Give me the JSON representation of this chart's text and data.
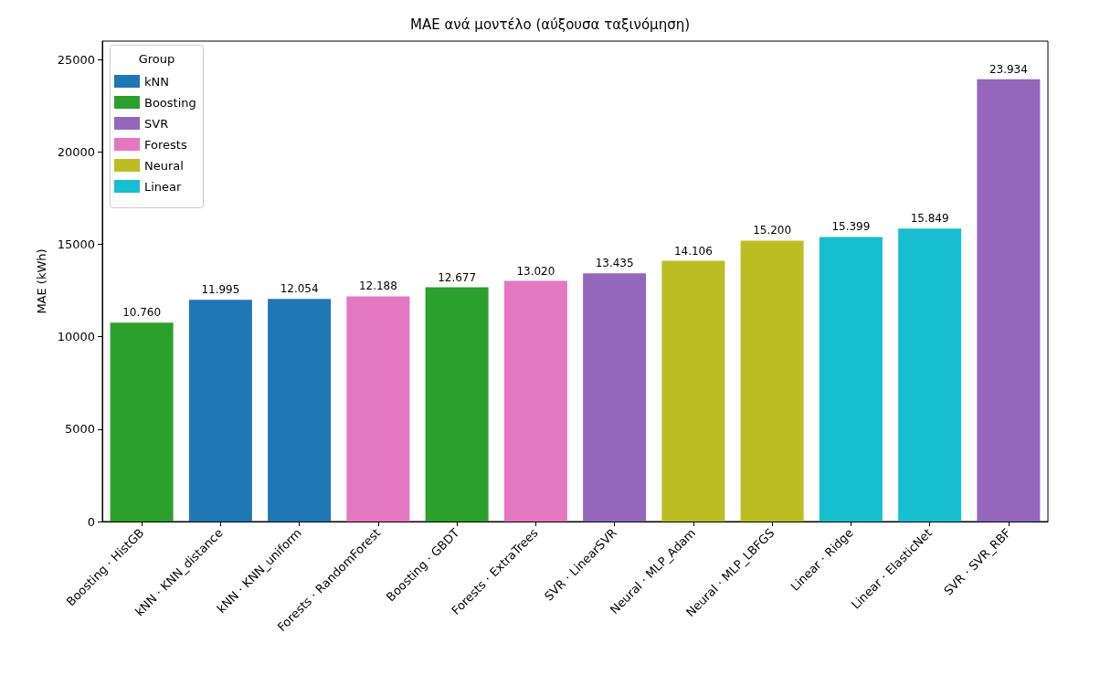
{
  "chart_data": {
    "type": "bar",
    "title": "MAE ανά μοντέλο (αύξουσα ταξινόμηση)",
    "ylabel": "MAE (kWh)",
    "legend_title": "Group",
    "legend": "top left",
    "grid": false,
    "categories": [
      "Boosting · HistGB",
      "kNN · KNN_distance",
      "kNN · KNN_uniform",
      "Forests · RandomForest",
      "Boosting · GBDT",
      "Forests · ExtraTrees",
      "SVR · LinearSVR",
      "Neural · MLP_Adam",
      "Neural · MLP_LBFGS",
      "Linear · Ridge",
      "Linear · ElasticNet",
      "SVR · SVR_RBF"
    ],
    "ylim": [
      0,
      26000
    ],
    "yticks": [
      0,
      5000,
      10000,
      15000,
      20000,
      25000
    ],
    "series": [
      {
        "name": "kNN",
        "color": "#1f77b4",
        "values": [
          null,
          11995,
          12054,
          null,
          null,
          null,
          null,
          null,
          null,
          null,
          null,
          null
        ],
        "value_labels": [
          null,
          "11.995",
          "12.054",
          null,
          null,
          null,
          null,
          null,
          null,
          null,
          null,
          null
        ]
      },
      {
        "name": "Boosting",
        "color": "#2ca02c",
        "values": [
          10760,
          null,
          null,
          null,
          12677,
          null,
          null,
          null,
          null,
          null,
          null,
          null
        ],
        "value_labels": [
          "10.760",
          null,
          null,
          null,
          "12.677",
          null,
          null,
          null,
          null,
          null,
          null,
          null
        ]
      },
      {
        "name": "SVR",
        "color": "#9467bd",
        "values": [
          null,
          null,
          null,
          null,
          null,
          null,
          13435,
          null,
          null,
          null,
          null,
          23934
        ],
        "value_labels": [
          null,
          null,
          null,
          null,
          null,
          null,
          "13.435",
          null,
          null,
          null,
          null,
          "23.934"
        ]
      },
      {
        "name": "Forests",
        "color": "#e377c2",
        "values": [
          null,
          null,
          null,
          12188,
          null,
          13020,
          null,
          null,
          null,
          null,
          null,
          null
        ],
        "value_labels": [
          null,
          null,
          null,
          "12.188",
          null,
          "13.020",
          null,
          null,
          null,
          null,
          null,
          null
        ]
      },
      {
        "name": "Neural",
        "color": "#bcbd22",
        "values": [
          null,
          null,
          null,
          null,
          null,
          null,
          null,
          14106,
          15200,
          null,
          null,
          null
        ],
        "value_labels": [
          null,
          null,
          null,
          null,
          null,
          null,
          null,
          "14.106",
          "15.200",
          null,
          null,
          null
        ]
      },
      {
        "name": "Linear",
        "color": "#17becf",
        "values": [
          null,
          null,
          null,
          null,
          null,
          null,
          null,
          null,
          null,
          15399,
          15849,
          null
        ],
        "value_labels": [
          null,
          null,
          null,
          null,
          null,
          null,
          null,
          null,
          null,
          "15.399",
          "15.849",
          null
        ]
      }
    ]
  }
}
